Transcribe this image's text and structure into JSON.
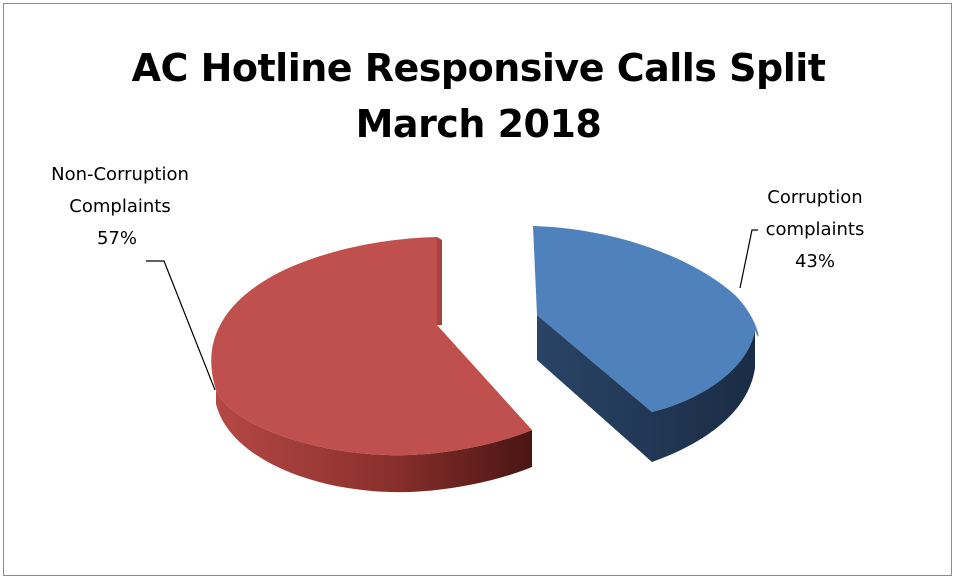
{
  "chart_data": {
    "type": "pie",
    "style": "3d-exploded",
    "title_lines": [
      "AC Hotline Responsive Calls Split",
      "March 2018"
    ],
    "slices": [
      {
        "label_lines": [
          "Corruption",
          "complaints"
        ],
        "value": 43,
        "value_label": "43%",
        "color": "#4f81bd",
        "side_color": "#1f3552"
      },
      {
        "label_lines": [
          "Non-Corruption",
          "Complaints"
        ],
        "value": 57,
        "value_label": "57%",
        "color": "#c0504d",
        "side_color": "#7a2a28"
      }
    ],
    "legend": "none",
    "grid": false
  }
}
